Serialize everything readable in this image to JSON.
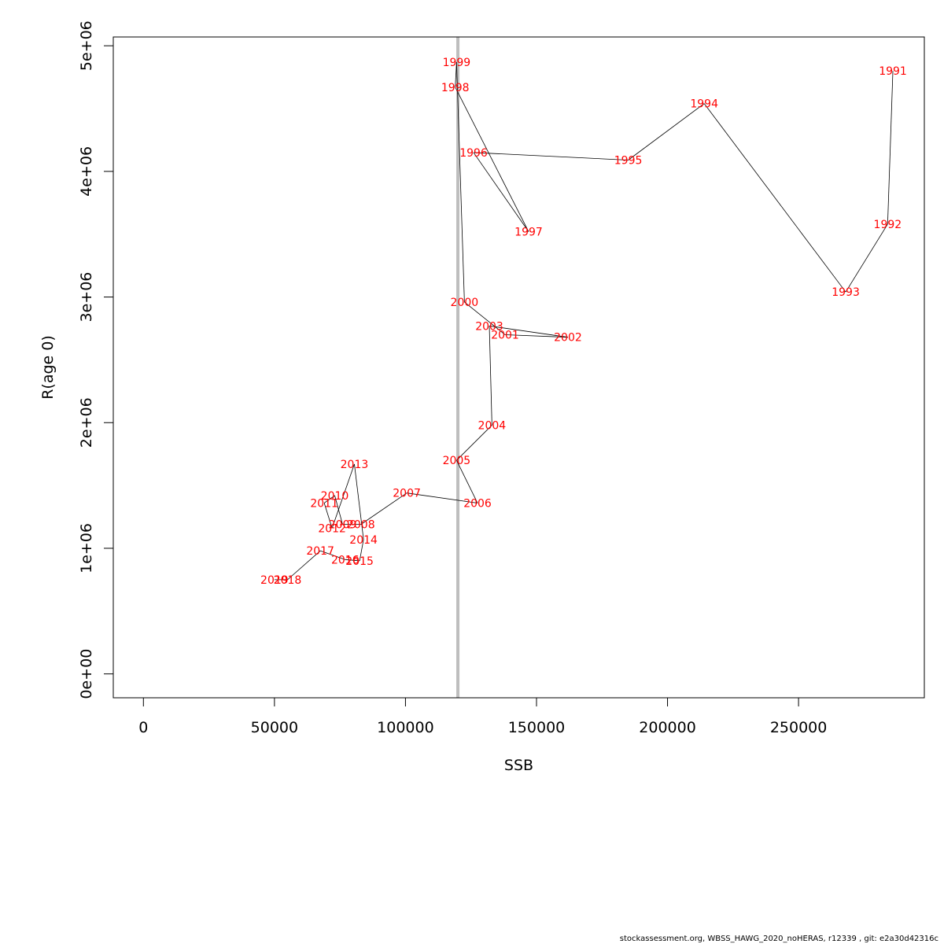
{
  "chart_data": {
    "type": "line",
    "xlabel": "SSB",
    "ylabel": "R(age 0)",
    "xlim": [
      -11500,
      298000
    ],
    "ylim": [
      -190000,
      5070000
    ],
    "x_ticks": [
      0,
      50000,
      100000,
      150000,
      200000,
      250000
    ],
    "x_tick_labels": [
      "0",
      "50000",
      "100000",
      "150000",
      "200000",
      "250000"
    ],
    "y_ticks": [
      0,
      1000000,
      2000000,
      3000000,
      4000000,
      5000000
    ],
    "y_tick_labels": [
      "0e+00",
      "1e+06",
      "2e+06",
      "3e+06",
      "4e+06",
      "5e+06"
    ],
    "reference_line": {
      "x": 120000,
      "color": "#bebebe"
    },
    "label_color": "#ff0000",
    "line_color": "#000000",
    "points": [
      {
        "year": "1991",
        "ssb": 286000,
        "r": 4800000
      },
      {
        "year": "1992",
        "ssb": 284000,
        "r": 3580000
      },
      {
        "year": "1993",
        "ssb": 268000,
        "r": 3040000
      },
      {
        "year": "1994",
        "ssb": 214000,
        "r": 4540000
      },
      {
        "year": "1995",
        "ssb": 185000,
        "r": 4090000
      },
      {
        "year": "1996",
        "ssb": 126000,
        "r": 4150000
      },
      {
        "year": "1997",
        "ssb": 147000,
        "r": 3520000
      },
      {
        "year": "1998",
        "ssb": 119000,
        "r": 4670000
      },
      {
        "year": "1999",
        "ssb": 119500,
        "r": 4870000
      },
      {
        "year": "2000",
        "ssb": 122500,
        "r": 2960000
      },
      {
        "year": "2001",
        "ssb": 138000,
        "r": 2700000
      },
      {
        "year": "2002",
        "ssb": 162000,
        "r": 2680000
      },
      {
        "year": "2003",
        "ssb": 132000,
        "r": 2770000
      },
      {
        "year": "2004",
        "ssb": 133000,
        "r": 1980000
      },
      {
        "year": "2005",
        "ssb": 119500,
        "r": 1700000
      },
      {
        "year": "2006",
        "ssb": 127500,
        "r": 1360000
      },
      {
        "year": "2007",
        "ssb": 100500,
        "r": 1440000
      },
      {
        "year": "2008",
        "ssb": 83000,
        "r": 1190000
      },
      {
        "year": "2009",
        "ssb": 76000,
        "r": 1190000
      },
      {
        "year": "2010",
        "ssb": 73000,
        "r": 1420000
      },
      {
        "year": "2011",
        "ssb": 69000,
        "r": 1360000
      },
      {
        "year": "2012",
        "ssb": 72000,
        "r": 1160000
      },
      {
        "year": "2013",
        "ssb": 80500,
        "r": 1670000
      },
      {
        "year": "2014",
        "ssb": 84000,
        "r": 1070000
      },
      {
        "year": "2015",
        "ssb": 82500,
        "r": 900000
      },
      {
        "year": "2016",
        "ssb": 77000,
        "r": 910000
      },
      {
        "year": "2017",
        "ssb": 67500,
        "r": 980000
      },
      {
        "year": "2018",
        "ssb": 55000,
        "r": 750000
      },
      {
        "year": "2019",
        "ssb": 50000,
        "r": 750000
      }
    ]
  },
  "footer": {
    "text": "stockassessment.org, WBSS_HAWG_2020_noHERAS, r12339 , git: e2a30d42316c"
  }
}
